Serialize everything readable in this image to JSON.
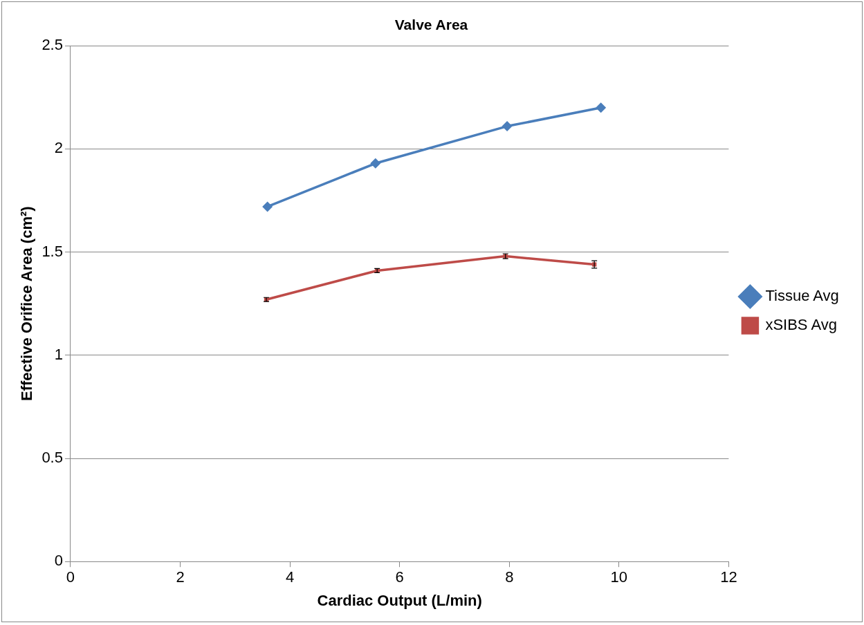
{
  "chart_data": {
    "type": "line",
    "title": "Valve Area",
    "xlabel": "Cardiac Output (L/min)",
    "ylabel": "Effective Orifice Area (cm²)",
    "series": [
      {
        "name": "Tissue Avg",
        "color": "#4a7ebb",
        "marker": "diamond",
        "x": [
          3.59,
          5.56,
          7.96,
          9.67
        ],
        "values": [
          1.72,
          1.93,
          2.11,
          2.2
        ]
      },
      {
        "name": "xSIBS Avg",
        "color": "#be4b48",
        "marker": "square",
        "x": [
          3.57,
          5.59,
          7.93,
          9.55
        ],
        "values": [
          1.27,
          1.41,
          1.48,
          1.44
        ],
        "errors": [
          0.01,
          0.01,
          0.012,
          0.018
        ]
      }
    ],
    "xlim": [
      0,
      12
    ],
    "xticks": [
      0,
      2,
      4,
      6,
      8,
      10,
      12
    ],
    "ylim": [
      0,
      2.5
    ],
    "yticks": [
      0,
      0.5,
      1,
      1.5,
      2,
      2.5
    ],
    "grid": "y",
    "legend": "right",
    "line_style": "solid"
  }
}
